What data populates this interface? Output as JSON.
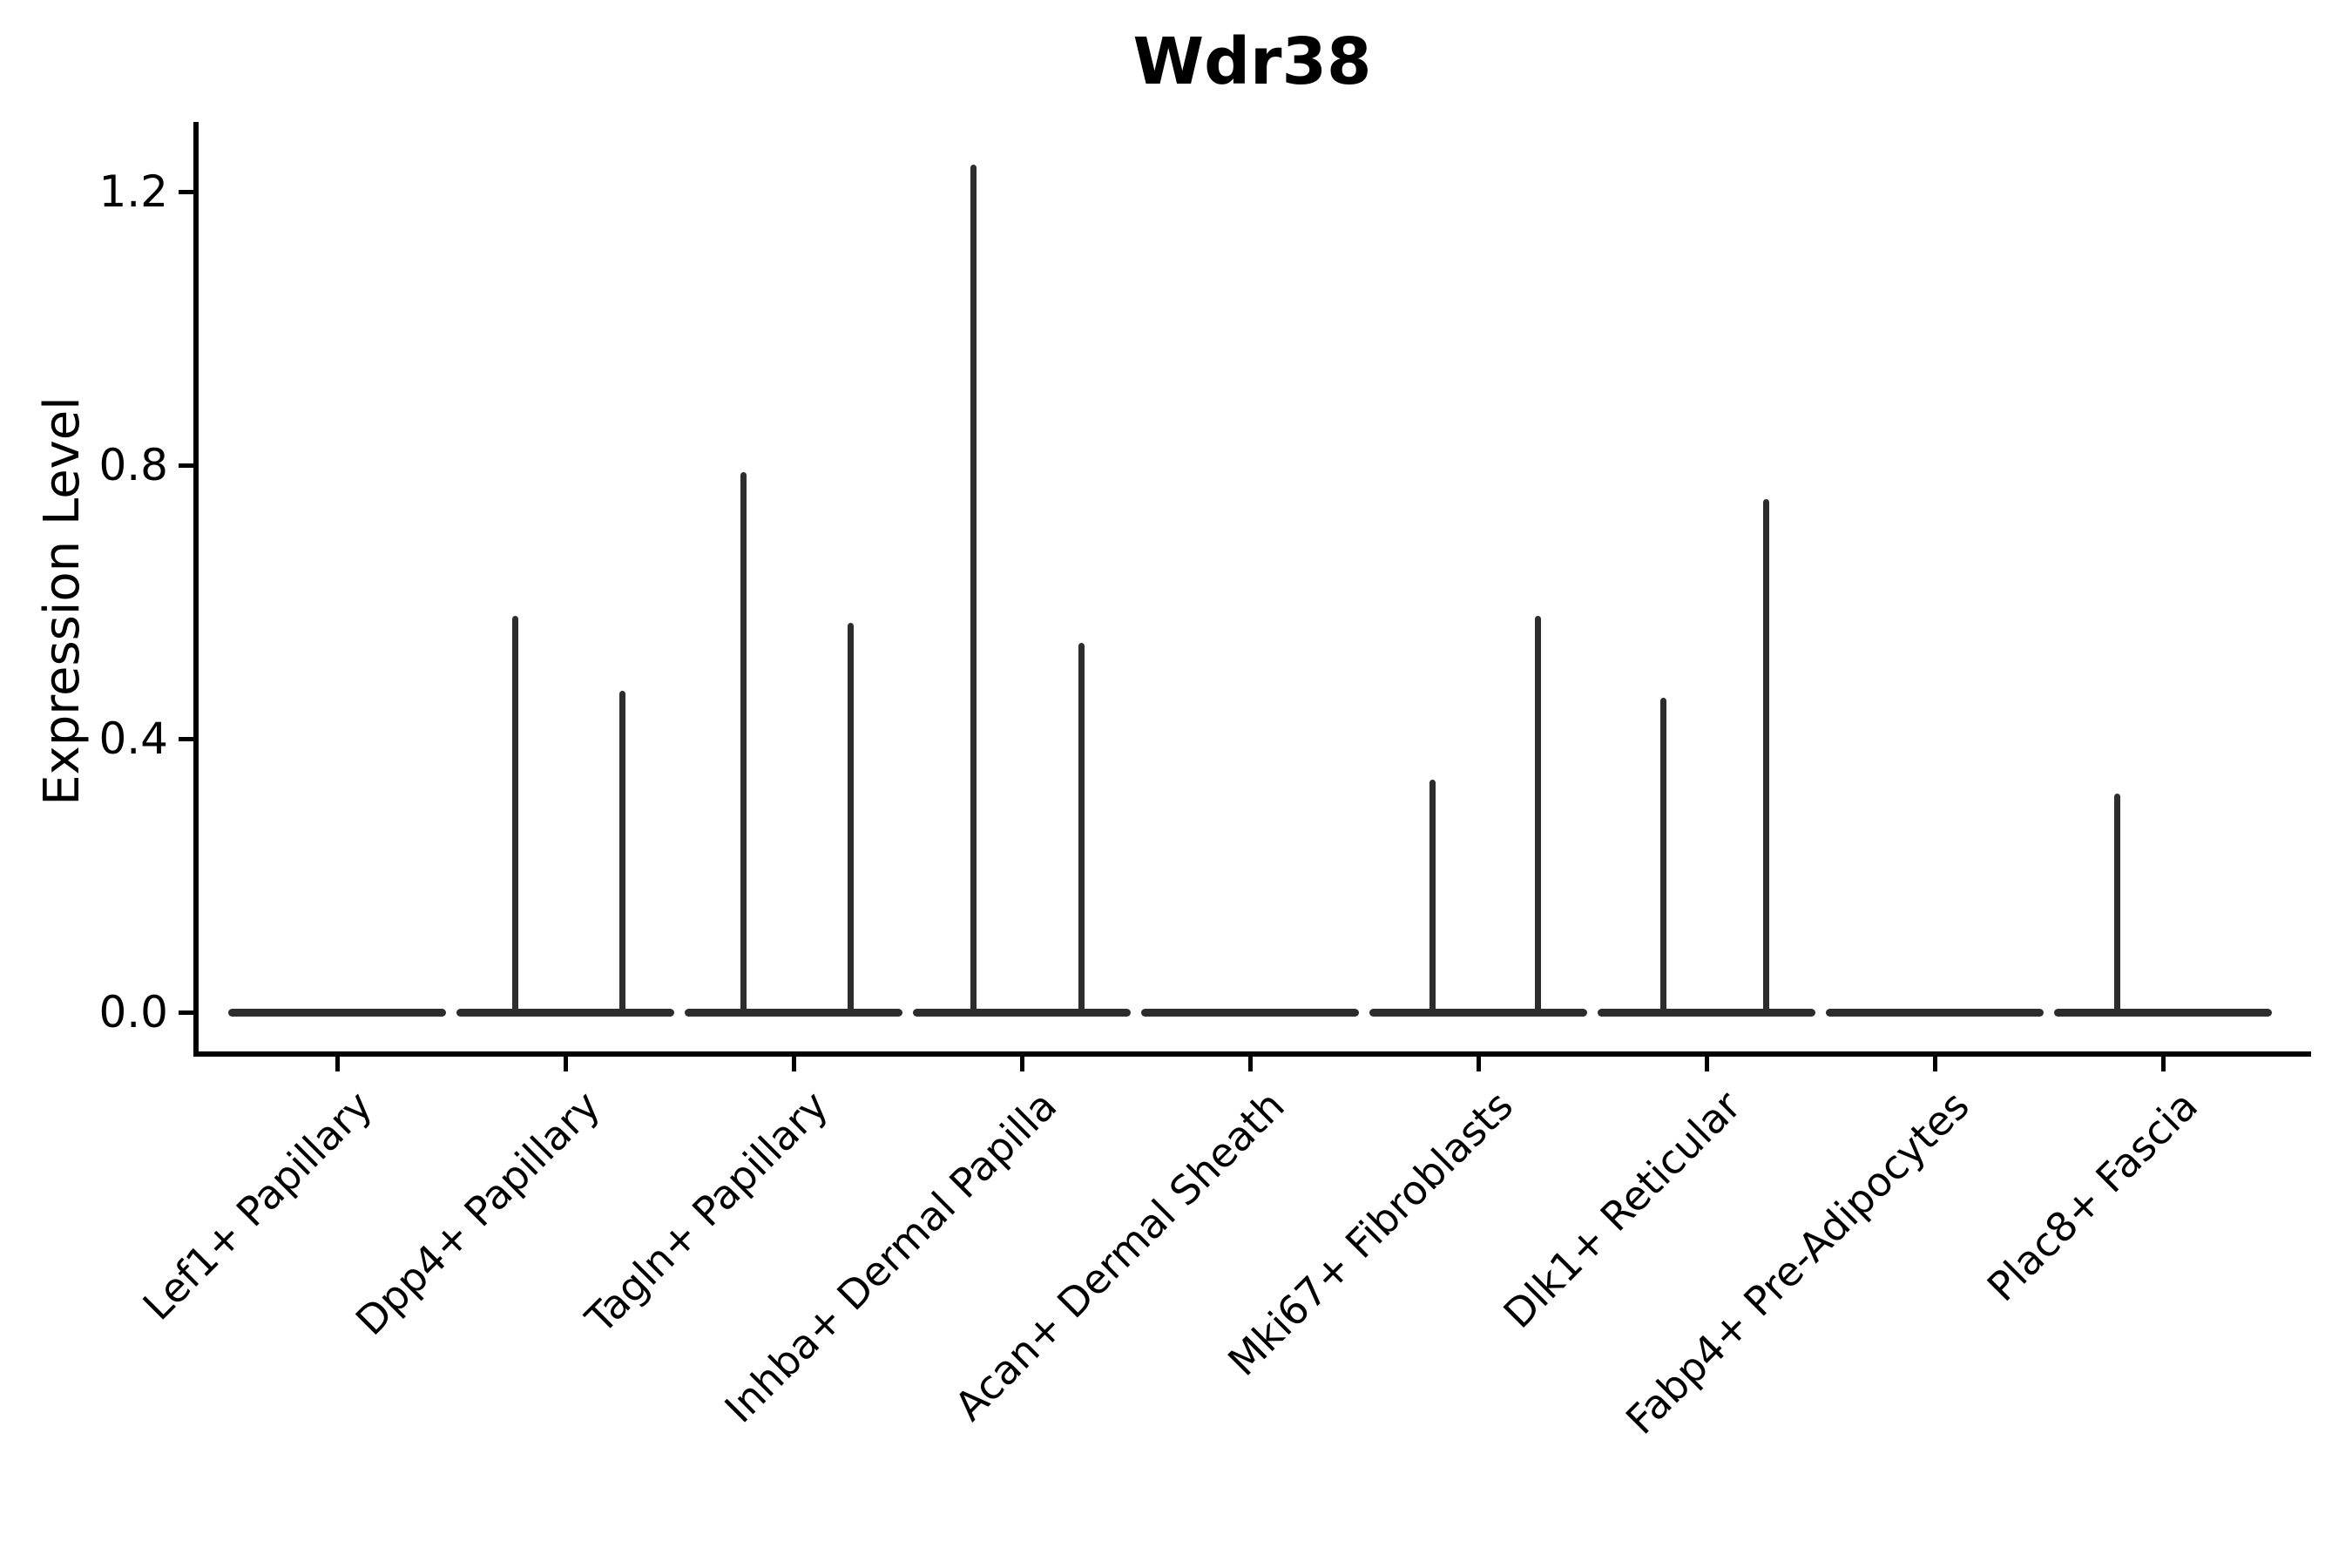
{
  "title": "Wdr38",
  "axes": {
    "ylabel": "Expression Level",
    "ytick_labels": [
      "0.0",
      "0.4",
      "0.8",
      "1.2"
    ]
  },
  "colors": {
    "background": "#ffffff",
    "spine": "#000000",
    "text": "#000000",
    "violin_stroke": "#2d2d2d"
  },
  "chart_data": {
    "type": "violin",
    "title": "Wdr38",
    "xlabel": "",
    "ylabel": "Expression Level",
    "ylim": [
      0,
      1.3
    ],
    "yticks": [
      0.0,
      0.4,
      0.8,
      1.2
    ],
    "grid": false,
    "legend": null,
    "categories": [
      "Lef1+ Papillary",
      "Dpp4+ Papillary",
      "Tagln+ Papillary",
      "Inhba+ Dermal Papilla",
      "Acan+ Dermal Sheath",
      "Mki67+ Fibroblasts",
      "Dlk1+ Reticular",
      "Fabp4+ Pre-Adipocytes",
      "Plac8+ Fascia"
    ],
    "violins": [
      {
        "category": "Lef1+ Papillary",
        "baseline_value": 0.0,
        "spikes": []
      },
      {
        "category": "Dpp4+ Papillary",
        "baseline_value": 0.0,
        "spikes": [
          {
            "offset": -0.22,
            "value": 0.58
          },
          {
            "offset": 0.25,
            "value": 0.47
          }
        ]
      },
      {
        "category": "Tagln+ Papillary",
        "baseline_value": 0.0,
        "spikes": [
          {
            "offset": -0.22,
            "value": 0.79
          },
          {
            "offset": 0.25,
            "value": 0.57
          }
        ]
      },
      {
        "category": "Inhba+ Dermal Papilla",
        "baseline_value": 0.0,
        "spikes": [
          {
            "offset": -0.21,
            "value": 1.24
          },
          {
            "offset": 0.26,
            "value": 0.54
          }
        ]
      },
      {
        "category": "Acan+ Dermal Sheath",
        "baseline_value": 0.0,
        "spikes": []
      },
      {
        "category": "Mki67+ Fibroblasts",
        "baseline_value": 0.0,
        "spikes": [
          {
            "offset": -0.2,
            "value": 0.34
          },
          {
            "offset": 0.26,
            "value": 0.58
          }
        ]
      },
      {
        "category": "Dlk1+ Reticular",
        "baseline_value": 0.0,
        "spikes": [
          {
            "offset": -0.19,
            "value": 0.46
          },
          {
            "offset": 0.26,
            "value": 0.75
          }
        ]
      },
      {
        "category": "Fabp4+ Pre-Adipocytes",
        "baseline_value": 0.0,
        "spikes": []
      },
      {
        "category": "Plac8+ Fascia",
        "baseline_value": 0.0,
        "spikes": [
          {
            "offset": -0.2,
            "value": 0.32
          }
        ]
      }
    ]
  }
}
